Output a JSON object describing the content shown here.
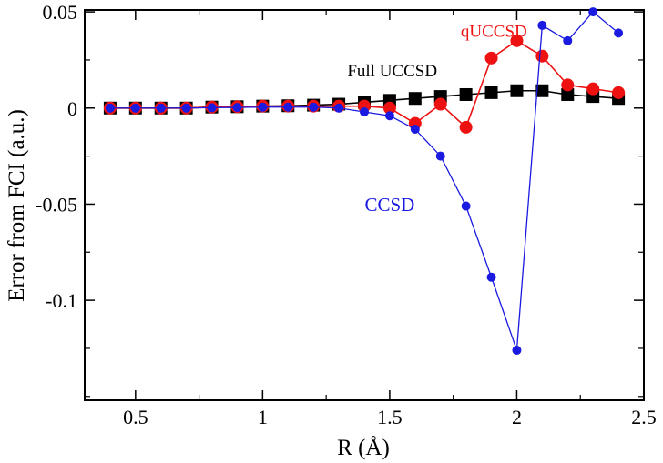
{
  "chart_data": {
    "type": "line",
    "title": "",
    "xlabel": "R (Å)",
    "ylabel": "Error from FCI (a.u.)",
    "xlim": [
      0.3,
      2.5
    ],
    "ylim": [
      -0.152,
      0.051
    ],
    "x_ticks": [
      0.5,
      1,
      1.5,
      2,
      2.5
    ],
    "x_tick_labels": [
      "0.5",
      "1",
      "1.5",
      "2",
      "2.5"
    ],
    "y_ticks": [
      -0.1,
      -0.05,
      0,
      0.05
    ],
    "y_tick_labels": [
      "-0.1",
      "-0.05",
      "0",
      "0.05"
    ],
    "x": [
      0.4,
      0.5,
      0.6,
      0.7,
      0.8,
      0.9,
      1.0,
      1.1,
      1.2,
      1.3,
      1.4,
      1.5,
      1.6,
      1.7,
      1.8,
      1.9,
      2.0,
      2.1,
      2.2,
      2.3,
      2.4
    ],
    "series": [
      {
        "name": "Full UCCSD",
        "color": "#000000",
        "marker": "square",
        "values": [
          0.0,
          0.0,
          0.0,
          0.0,
          0.0005,
          0.0007,
          0.001,
          0.0012,
          0.0015,
          0.002,
          0.003,
          0.004,
          0.005,
          0.006,
          0.007,
          0.008,
          0.009,
          0.009,
          0.007,
          0.006,
          0.005
        ]
      },
      {
        "name": "qUCCSD",
        "color": "#ee1111",
        "marker": "circle",
        "values": [
          0.0,
          0.0,
          0.0,
          0.0,
          0.0005,
          0.0007,
          0.001,
          0.001,
          0.001,
          0.001,
          0.001,
          0.0,
          -0.008,
          0.002,
          -0.01,
          0.026,
          0.035,
          0.027,
          0.012,
          0.01,
          0.008
        ]
      },
      {
        "name": "CCSD",
        "color": "#1a1ae0",
        "marker": "circle",
        "values": [
          0.0,
          0.0,
          0.0,
          0.0,
          0.0002,
          0.0003,
          0.0005,
          0.0005,
          0.0005,
          0.0,
          -0.002,
          -0.004,
          -0.011,
          -0.025,
          -0.051,
          -0.088,
          -0.126,
          0.043,
          0.035,
          0.05,
          0.039
        ]
      }
    ],
    "annotations": [
      {
        "series": "qUCCSD",
        "text": "qUCCSD",
        "color": "#ee1111",
        "at": [
          1.91,
          0.0371
        ]
      },
      {
        "series": "Full UCCSD",
        "text": "Full UCCSD",
        "color": "#000000",
        "at": [
          1.51,
          0.0164
        ]
      },
      {
        "series": "CCSD",
        "text": "CCSD",
        "color": "#1a1ae0",
        "at": [
          1.5,
          -0.0535
        ]
      }
    ],
    "grid": false,
    "legend": "none"
  }
}
